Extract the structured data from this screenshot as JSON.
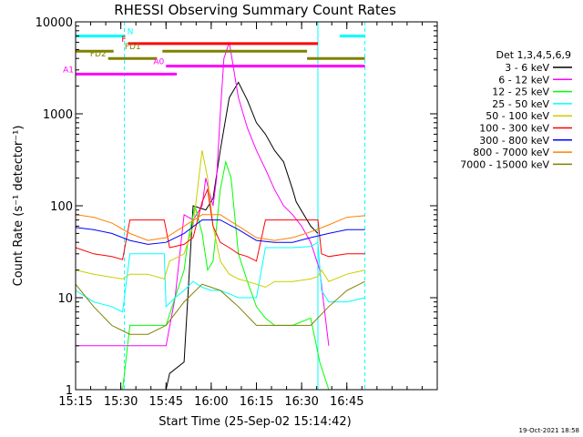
{
  "chart_data": {
    "type": "line",
    "title": "RHESSI Observing Summary Count Rates",
    "xlabel": "Start Time (25-Sep-02 15:14:42)",
    "ylabel": "Count Rate (s⁻¹ detector⁻¹)",
    "yscale": "log",
    "xlim": [
      15.0,
      17.0
    ],
    "ylim": [
      1,
      10000
    ],
    "x_ticks": [
      {
        "value": 15.0,
        "label": "15:15"
      },
      {
        "value": 15.25,
        "label": "15:30"
      },
      {
        "value": 15.5,
        "label": "15:45"
      },
      {
        "value": 15.75,
        "label": "16:00"
      },
      {
        "value": 16.0,
        "label": "16:15"
      },
      {
        "value": 16.25,
        "label": "16:30"
      },
      {
        "value": 16.5,
        "label": "16:45"
      }
    ],
    "y_ticks": [
      {
        "value": 1,
        "label": "1"
      },
      {
        "value": 10,
        "label": "10"
      },
      {
        "value": 100,
        "label": "100"
      },
      {
        "value": 1000,
        "label": "1000"
      },
      {
        "value": 10000,
        "label": "10000"
      }
    ],
    "legend_title": "Det 1,3,4,5,6,9",
    "legend_position": "right",
    "series": [
      {
        "name": "3 - 6 keV",
        "color": "#000000",
        "x": [
          15.0,
          15.26,
          15.3,
          15.5,
          15.52,
          15.6,
          15.65,
          15.72,
          15.76,
          15.8,
          15.85,
          15.9,
          15.95,
          16.0,
          16.05,
          16.1,
          16.15,
          16.2,
          16.22,
          16.3,
          16.34
        ],
        "y": [
          1,
          1,
          1,
          1,
          1.5,
          2,
          100,
          90,
          120,
          400,
          1500,
          2200,
          1400,
          800,
          600,
          400,
          300,
          150,
          110,
          60,
          50
        ]
      },
      {
        "name": "6 - 12 keV",
        "color": "#ff00ff",
        "x": [
          15.0,
          15.1,
          15.26,
          15.3,
          15.4,
          15.5,
          15.55,
          15.6,
          15.65,
          15.7,
          15.72,
          15.74,
          15.76,
          15.78,
          15.8,
          15.82,
          15.85,
          15.9,
          15.95,
          16.0,
          16.05,
          16.1,
          16.15,
          16.2,
          16.25,
          16.3,
          16.35,
          16.4
        ],
        "y": [
          3,
          3,
          3,
          3,
          3,
          3,
          10,
          80,
          70,
          100,
          200,
          140,
          100,
          200,
          1000,
          4000,
          6000,
          1500,
          700,
          400,
          250,
          150,
          100,
          80,
          60,
          40,
          20,
          3
        ]
      },
      {
        "name": "12 - 25 keV",
        "color": "#00ff00",
        "x": [
          15.0,
          15.1,
          15.26,
          15.3,
          15.45,
          15.5,
          15.55,
          15.6,
          15.62,
          15.66,
          15.7,
          15.73,
          15.76,
          15.8,
          15.83,
          15.86,
          15.9,
          15.95,
          16.0,
          16.05,
          16.1,
          16.2,
          16.3,
          16.35,
          16.4,
          16.5,
          16.6
        ],
        "y": [
          1,
          1,
          1,
          5,
          5,
          5,
          10,
          20,
          40,
          100,
          50,
          20,
          25,
          150,
          300,
          200,
          30,
          15,
          8,
          6,
          5,
          5,
          6,
          2,
          1,
          1,
          1
        ]
      },
      {
        "name": "25 - 50 keV",
        "color": "#00ffff",
        "x": [
          15.0,
          15.1,
          15.2,
          15.26,
          15.3,
          15.4,
          15.49,
          15.5,
          15.55,
          15.6,
          15.65,
          15.7,
          15.75,
          15.8,
          15.85,
          15.9,
          15.95,
          16.0,
          16.05,
          16.1,
          16.2,
          16.3,
          16.34,
          16.36,
          16.4,
          16.5,
          16.6
        ],
        "y": [
          12,
          9,
          8,
          7,
          30,
          30,
          30,
          8,
          10,
          12,
          15,
          13,
          12,
          12,
          11,
          10,
          10,
          10,
          35,
          35,
          35,
          36,
          40,
          12,
          9,
          9,
          10
        ]
      },
      {
        "name": "50 - 100 keV",
        "color": "#cccc00",
        "x": [
          15.0,
          15.1,
          15.26,
          15.3,
          15.4,
          15.49,
          15.52,
          15.6,
          15.65,
          15.7,
          15.73,
          15.76,
          15.8,
          15.85,
          15.9,
          15.95,
          16.0,
          16.05,
          16.1,
          16.2,
          16.3,
          16.34,
          16.36,
          16.4,
          16.5,
          16.6
        ],
        "y": [
          20,
          18,
          16,
          18,
          18,
          16,
          25,
          30,
          60,
          400,
          200,
          60,
          25,
          18,
          16,
          15,
          14,
          13,
          15,
          15,
          16,
          17,
          20,
          15,
          18,
          20
        ]
      },
      {
        "name": "100 - 300 keV",
        "color": "#ff0000",
        "x": [
          15.0,
          15.1,
          15.2,
          15.26,
          15.3,
          15.4,
          15.49,
          15.52,
          15.6,
          15.65,
          15.7,
          15.73,
          15.76,
          15.8,
          15.85,
          15.9,
          15.95,
          16.0,
          16.05,
          16.1,
          16.2,
          16.3,
          16.34,
          16.36,
          16.4,
          16.5,
          16.6
        ],
        "y": [
          35,
          30,
          28,
          26,
          70,
          70,
          70,
          35,
          38,
          45,
          110,
          150,
          60,
          40,
          35,
          30,
          28,
          25,
          70,
          70,
          70,
          70,
          70,
          30,
          28,
          30,
          30
        ]
      },
      {
        "name": "300 - 800 keV",
        "color": "#0000ff",
        "x": [
          15.0,
          15.1,
          15.2,
          15.3,
          15.4,
          15.5,
          15.6,
          15.7,
          15.8,
          15.9,
          16.0,
          16.1,
          16.2,
          16.3,
          16.4,
          16.5,
          16.6
        ],
        "y": [
          58,
          55,
          50,
          42,
          38,
          40,
          50,
          70,
          70,
          55,
          42,
          40,
          40,
          45,
          50,
          55,
          55
        ]
      },
      {
        "name": "800 - 7000 keV",
        "color": "#ff8000",
        "x": [
          15.0,
          15.1,
          15.2,
          15.3,
          15.4,
          15.5,
          15.6,
          15.7,
          15.8,
          15.9,
          16.0,
          16.1,
          16.2,
          16.3,
          16.4,
          16.5,
          16.6
        ],
        "y": [
          80,
          75,
          65,
          50,
          42,
          45,
          60,
          80,
          80,
          60,
          45,
          42,
          45,
          52,
          62,
          75,
          78
        ]
      },
      {
        "name": "7000 - 15000 keV",
        "color": "#808000",
        "x": [
          15.0,
          15.1,
          15.2,
          15.3,
          15.4,
          15.5,
          15.6,
          15.7,
          15.8,
          15.9,
          16.0,
          16.1,
          16.2,
          16.3,
          16.4,
          16.5,
          16.6
        ],
        "y": [
          14,
          8,
          5,
          4,
          4,
          5,
          9,
          14,
          12,
          8,
          5,
          5,
          5,
          5,
          8,
          12,
          15
        ]
      }
    ],
    "state_bars": [
      {
        "label": "N",
        "color": "#00ffff",
        "y": 7000,
        "x_start": 15.0,
        "x_end": 15.27
      },
      {
        "label": "",
        "color": "#00ffff",
        "y": 7000,
        "x_start": 16.46,
        "x_end": 16.6
      },
      {
        "label": "F",
        "color": "#ff0000",
        "y": 5800,
        "x_start": 15.29,
        "x_end": 16.34
      },
      {
        "label": "FD1",
        "color": "#808000",
        "y": 4800,
        "x_start": 15.0,
        "x_end": 15.21
      },
      {
        "label": "",
        "color": "#808000",
        "y": 4800,
        "x_start": 15.48,
        "x_end": 16.28
      },
      {
        "label": "FD2",
        "color": "#808000",
        "y": 4000,
        "x_start": 15.18,
        "x_end": 15.45
      },
      {
        "label": "",
        "color": "#808000",
        "y": 4000,
        "x_start": 16.28,
        "x_end": 16.6
      },
      {
        "label": "A0",
        "color": "#ff00ff",
        "y": 3300,
        "x_start": 15.5,
        "x_end": 16.6
      },
      {
        "label": "A1",
        "color": "#ff00ff",
        "y": 2700,
        "x_start": 15.0,
        "x_end": 15.56
      }
    ],
    "vertical_markers": [
      {
        "x": 15.0,
        "color": "#00ffff",
        "style": "solid"
      },
      {
        "x": 15.27,
        "color": "#00ffff",
        "style": "dashed"
      },
      {
        "x": 16.34,
        "color": "#00ffff",
        "style": "solid"
      },
      {
        "x": 16.6,
        "color": "#00ffff",
        "style": "dashed"
      }
    ],
    "footer_date": "19-Oct-2021 18:58"
  }
}
